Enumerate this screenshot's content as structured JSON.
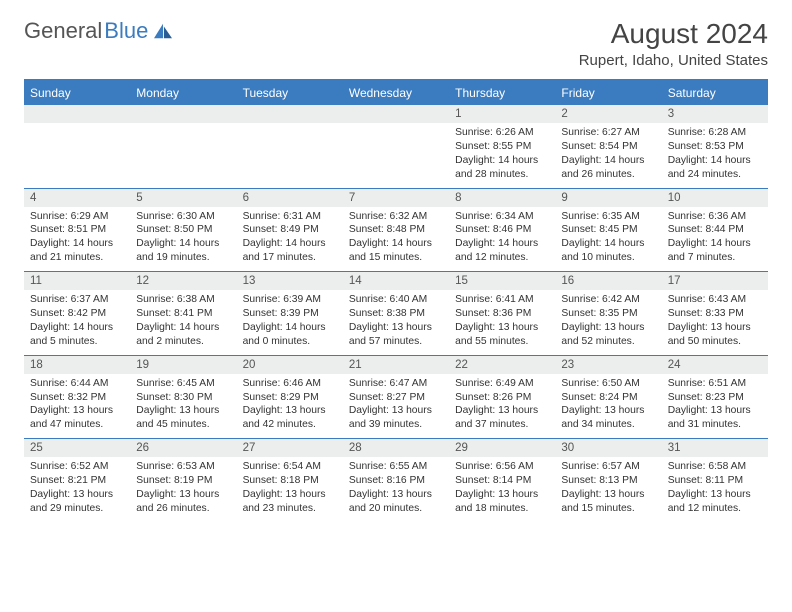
{
  "logo": {
    "text_gray": "General",
    "text_blue": "Blue"
  },
  "title": "August 2024",
  "location": "Rupert, Idaho, United States",
  "colors": {
    "accent": "#3b7bbf",
    "header_bg": "#3b7bbf",
    "header_text": "#ffffff",
    "daynum_bg": "#eceded",
    "body_text": "#333333",
    "page_bg": "#ffffff"
  },
  "day_headers": [
    "Sunday",
    "Monday",
    "Tuesday",
    "Wednesday",
    "Thursday",
    "Friday",
    "Saturday"
  ],
  "weeks": [
    {
      "nums": [
        "",
        "",
        "",
        "",
        "1",
        "2",
        "3"
      ],
      "cells": [
        {},
        {},
        {},
        {},
        {
          "sunrise": "6:26 AM",
          "sunset": "8:55 PM",
          "daylight": "14 hours and 28 minutes."
        },
        {
          "sunrise": "6:27 AM",
          "sunset": "8:54 PM",
          "daylight": "14 hours and 26 minutes."
        },
        {
          "sunrise": "6:28 AM",
          "sunset": "8:53 PM",
          "daylight": "14 hours and 24 minutes."
        }
      ]
    },
    {
      "nums": [
        "4",
        "5",
        "6",
        "7",
        "8",
        "9",
        "10"
      ],
      "cells": [
        {
          "sunrise": "6:29 AM",
          "sunset": "8:51 PM",
          "daylight": "14 hours and 21 minutes."
        },
        {
          "sunrise": "6:30 AM",
          "sunset": "8:50 PM",
          "daylight": "14 hours and 19 minutes."
        },
        {
          "sunrise": "6:31 AM",
          "sunset": "8:49 PM",
          "daylight": "14 hours and 17 minutes."
        },
        {
          "sunrise": "6:32 AM",
          "sunset": "8:48 PM",
          "daylight": "14 hours and 15 minutes."
        },
        {
          "sunrise": "6:34 AM",
          "sunset": "8:46 PM",
          "daylight": "14 hours and 12 minutes."
        },
        {
          "sunrise": "6:35 AM",
          "sunset": "8:45 PM",
          "daylight": "14 hours and 10 minutes."
        },
        {
          "sunrise": "6:36 AM",
          "sunset": "8:44 PM",
          "daylight": "14 hours and 7 minutes."
        }
      ]
    },
    {
      "nums": [
        "11",
        "12",
        "13",
        "14",
        "15",
        "16",
        "17"
      ],
      "cells": [
        {
          "sunrise": "6:37 AM",
          "sunset": "8:42 PM",
          "daylight": "14 hours and 5 minutes."
        },
        {
          "sunrise": "6:38 AM",
          "sunset": "8:41 PM",
          "daylight": "14 hours and 2 minutes."
        },
        {
          "sunrise": "6:39 AM",
          "sunset": "8:39 PM",
          "daylight": "14 hours and 0 minutes."
        },
        {
          "sunrise": "6:40 AM",
          "sunset": "8:38 PM",
          "daylight": "13 hours and 57 minutes."
        },
        {
          "sunrise": "6:41 AM",
          "sunset": "8:36 PM",
          "daylight": "13 hours and 55 minutes."
        },
        {
          "sunrise": "6:42 AM",
          "sunset": "8:35 PM",
          "daylight": "13 hours and 52 minutes."
        },
        {
          "sunrise": "6:43 AM",
          "sunset": "8:33 PM",
          "daylight": "13 hours and 50 minutes."
        }
      ]
    },
    {
      "nums": [
        "18",
        "19",
        "20",
        "21",
        "22",
        "23",
        "24"
      ],
      "cells": [
        {
          "sunrise": "6:44 AM",
          "sunset": "8:32 PM",
          "daylight": "13 hours and 47 minutes."
        },
        {
          "sunrise": "6:45 AM",
          "sunset": "8:30 PM",
          "daylight": "13 hours and 45 minutes."
        },
        {
          "sunrise": "6:46 AM",
          "sunset": "8:29 PM",
          "daylight": "13 hours and 42 minutes."
        },
        {
          "sunrise": "6:47 AM",
          "sunset": "8:27 PM",
          "daylight": "13 hours and 39 minutes."
        },
        {
          "sunrise": "6:49 AM",
          "sunset": "8:26 PM",
          "daylight": "13 hours and 37 minutes."
        },
        {
          "sunrise": "6:50 AM",
          "sunset": "8:24 PM",
          "daylight": "13 hours and 34 minutes."
        },
        {
          "sunrise": "6:51 AM",
          "sunset": "8:23 PM",
          "daylight": "13 hours and 31 minutes."
        }
      ]
    },
    {
      "nums": [
        "25",
        "26",
        "27",
        "28",
        "29",
        "30",
        "31"
      ],
      "cells": [
        {
          "sunrise": "6:52 AM",
          "sunset": "8:21 PM",
          "daylight": "13 hours and 29 minutes."
        },
        {
          "sunrise": "6:53 AM",
          "sunset": "8:19 PM",
          "daylight": "13 hours and 26 minutes."
        },
        {
          "sunrise": "6:54 AM",
          "sunset": "8:18 PM",
          "daylight": "13 hours and 23 minutes."
        },
        {
          "sunrise": "6:55 AM",
          "sunset": "8:16 PM",
          "daylight": "13 hours and 20 minutes."
        },
        {
          "sunrise": "6:56 AM",
          "sunset": "8:14 PM",
          "daylight": "13 hours and 18 minutes."
        },
        {
          "sunrise": "6:57 AM",
          "sunset": "8:13 PM",
          "daylight": "13 hours and 15 minutes."
        },
        {
          "sunrise": "6:58 AM",
          "sunset": "8:11 PM",
          "daylight": "13 hours and 12 minutes."
        }
      ]
    }
  ],
  "labels": {
    "sunrise": "Sunrise: ",
    "sunset": "Sunset: ",
    "daylight": "Daylight: "
  }
}
